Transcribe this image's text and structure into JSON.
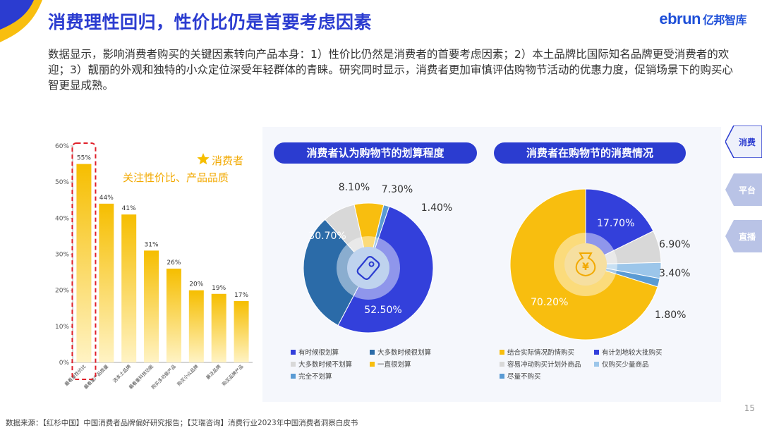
{
  "header": {
    "title": "消费理性回归，性价比仍是首要考虑因素",
    "logo_en": "ebrun",
    "logo_cn": "亿邦智库"
  },
  "intro": "数据显示，影响消费者购买的关键因素转向产品本身：1）性价比仍然是消费者的首要考虑因素；2）本土品牌比国际知名品牌更受消费者的欢迎；3）靓丽的外观和独特的小众定位深受年轻群体的青睐。研究同时显示，消费者更加审慎评估购物节活动的优惠力度，促销场景下的购买心智更显成熟。",
  "side_tabs": [
    "消费",
    "平台",
    "直播"
  ],
  "page_number": "15",
  "source": "数据来源：【红杉中国】中国消费者品牌偏好研究报告；【艾瑞咨询】消费行业2023年中国消费者洞察白皮书",
  "colors": {
    "title_blue": "#2B3CD0",
    "bar_top": "#F6BE00",
    "bar_bottom": "#FFF3C4",
    "highlight_red": "#E0202A",
    "pie_blue": "#3340DB",
    "pie_teal": "#2B6BA8",
    "pie_grey": "#D8D8D8",
    "pie_yellow": "#F8BE0F",
    "pie_lightblue": "#5A9BD4",
    "pie_lighterblue": "#9CC6EA"
  },
  "chart_data": [
    {
      "type": "bar",
      "annotation_line1": "消费者",
      "annotation_line2": "关注性价比、产品品质",
      "star_icon": "star-icon",
      "ylim": [
        0,
        60
      ],
      "yticks": [
        "0%",
        "10%",
        "20%",
        "30%",
        "40%",
        "50%",
        "60%"
      ],
      "categories": [
        "最看重性价比",
        "最看重产品质量",
        "选本土品牌",
        "最看重科技功能",
        "购买多功能产品",
        "购买小众品牌",
        "最注品牌",
        "购买品牌产品"
      ],
      "values": [
        55,
        44,
        41,
        31,
        26,
        20,
        19,
        17
      ],
      "value_labels": [
        "55%",
        "44%",
        "41%",
        "31%",
        "26%",
        "20%",
        "19%",
        "17%"
      ],
      "highlighted_index": 0
    },
    {
      "type": "pie",
      "title": "消费者认为购物节的划算程度",
      "center_icon": "price-tag-icon",
      "slices": [
        {
          "name": "有时候很划算",
          "value": 52.5,
          "label": "52.50%"
        },
        {
          "name": "大多数时候很划算",
          "value": 30.7,
          "label": "30.70%"
        },
        {
          "name": "大多数时候不划算",
          "value": 8.1,
          "label": "8.10%"
        },
        {
          "name": "一直很划算",
          "value": 7.3,
          "label": "7.30%"
        },
        {
          "name": "完全不划算",
          "value": 1.4,
          "label": "1.40%"
        }
      ]
    },
    {
      "type": "pie",
      "title": "消费者在购物节的消费情况",
      "center_icon": "money-bag-icon",
      "slices": [
        {
          "name": "结合实际情况酌情购买",
          "value": 70.2,
          "label": "70.20%"
        },
        {
          "name": "有计划地较大批购买",
          "value": 17.7,
          "label": "17.70%"
        },
        {
          "name": "容易冲动购买计划外商品",
          "value": 6.9,
          "label": "6.90%"
        },
        {
          "name": "仅购买少量商品",
          "value": 3.4,
          "label": "3.40%"
        },
        {
          "name": "尽量不购买",
          "value": 1.8,
          "label": "1.80%"
        }
      ]
    }
  ]
}
